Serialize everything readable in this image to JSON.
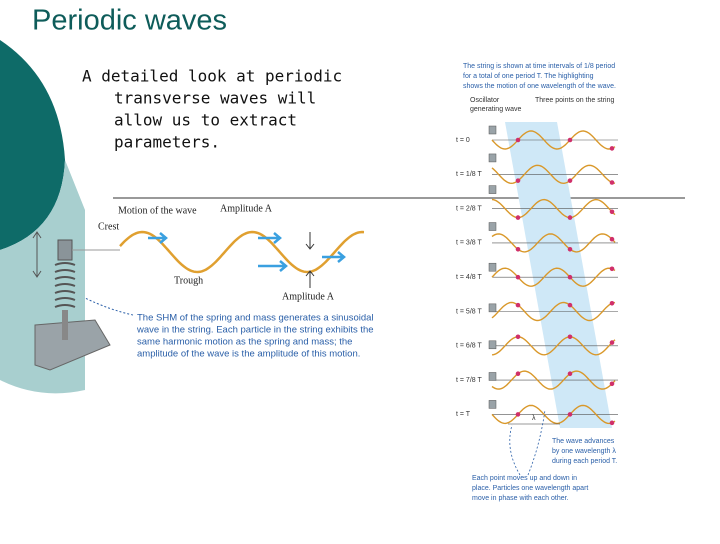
{
  "slide": {
    "title": "Periodic waves",
    "bullet_lines": [
      "A detailed look at periodic",
      "transverse waves will",
      "allow us to extract",
      "parameters."
    ],
    "left_figure": {
      "motion_label": "Motion of the wave",
      "amplitude_top": "Amplitude A",
      "crest": "Crest",
      "trough": "Trough",
      "amplitude_bottom": "Amplitude A",
      "caption_lines": [
        "The SHM of the spring and mass generates a sinusoidal",
        "wave in the string. Each particle in the string exhibits the",
        "same harmonic motion as the spring and mass; the",
        "amplitude of the wave is the amplitude of this motion."
      ]
    },
    "right_figure": {
      "header_lines": [
        "The string is shown at time intervals of 1/8 period",
        "for a total of one period T. The highlighting",
        "shows the motion of one wavelength of the wave."
      ],
      "oscillator_lines": [
        "Oscillator",
        "generating wave"
      ],
      "points_label": "Three points on the string",
      "time_labels": [
        "t = 0",
        "t = 1/8 T",
        "t = 2/8 T",
        "t = 3/8 T",
        "t = 4/8 T",
        "t = 5/8 T",
        "t = 6/8 T",
        "t = 7/8 T",
        "t = T"
      ],
      "wavelength_label": "λ",
      "advance_lines": [
        "The wave advances",
        "by one wavelength λ",
        "during each period T."
      ],
      "point_lines": [
        "Each point moves up and down in",
        "place. Particles one wavelength apart",
        "move in phase with each other."
      ]
    }
  }
}
